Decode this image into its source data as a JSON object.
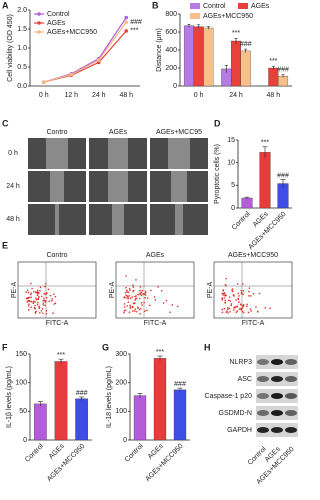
{
  "chart_data": [
    {
      "panel": "A",
      "type": "line",
      "y_label": "Cell viability (OD 450)",
      "categories": [
        "0 h",
        "12 h",
        "24 h",
        "48 h"
      ],
      "series": [
        {
          "name": "Control",
          "color": "#b05be0",
          "values": [
            0.1,
            0.32,
            0.72,
            1.8
          ]
        },
        {
          "name": "AGEs",
          "color": "#e8413c",
          "values": [
            0.1,
            0.28,
            0.62,
            1.45
          ],
          "value_annotations": [
            null,
            null,
            null,
            "***"
          ]
        },
        {
          "name": "AGEs+MCC950",
          "color": "#f5b97f",
          "values": [
            0.1,
            0.3,
            0.68,
            1.68
          ],
          "value_annotations": [
            null,
            null,
            null,
            "###"
          ]
        }
      ],
      "ylim": [
        0,
        2
      ],
      "yticks": [
        {
          "value": 0,
          "label": "0.0"
        },
        0.5,
        {
          "value": 1,
          "label": "1.0"
        },
        1.5,
        {
          "value": 2,
          "label": "2.0"
        }
      ],
      "legend": "upper left"
    },
    {
      "panel": "B",
      "type": "grouped-bar",
      "y_label": "Distance (μm)",
      "categories": [
        "0 h",
        "24 h",
        "48 h"
      ],
      "series": [
        {
          "name": "Control",
          "color": "#b57ae6",
          "values": [
            670,
            190,
            null
          ],
          "errors": [
            15,
            40,
            null
          ]
        },
        {
          "name": "AGEs",
          "color": "#e8413c",
          "values": [
            660,
            500,
            200
          ],
          "errors": [
            20,
            30,
            20
          ],
          "value_annotations": [
            null,
            "***",
            "***"
          ]
        },
        {
          "name": "AGEs+MCC950",
          "color": "#f7c08a",
          "values": [
            645,
            390,
            110
          ],
          "errors": [
            15,
            20,
            15
          ],
          "value_annotations": [
            null,
            "###",
            "###"
          ]
        }
      ],
      "ylim": [
        0,
        800
      ],
      "yticks": [
        0,
        200,
        400,
        600,
        800
      ],
      "legend": "upper right"
    },
    {
      "panel": "D",
      "type": "bar",
      "y_label": "Pyroptotic cells (%)",
      "categories": [
        "Control",
        "AGEs",
        "AGEs+MCC950"
      ],
      "values": [
        2.2,
        12.3,
        5.4
      ],
      "errors": [
        0.2,
        1.2,
        0.9
      ],
      "colors": [
        "#b45cd9",
        "#e83c3c",
        "#3d4de6"
      ],
      "value_annotations": [
        null,
        "***",
        "###"
      ],
      "ylim": [
        0,
        15
      ],
      "yticks": [
        0,
        5,
        10,
        15
      ]
    },
    {
      "panel": "F",
      "type": "bar",
      "y_label": "IL-1β levels (pg/mL)",
      "categories": [
        "Control",
        "AGEs",
        "AGEs+MCC950"
      ],
      "values": [
        63,
        137,
        72
      ],
      "errors": [
        4,
        4,
        3
      ],
      "colors": [
        "#b45cd9",
        "#e83c3c",
        "#3d4de6"
      ],
      "value_annotations": [
        null,
        "***",
        "###"
      ],
      "ylim": [
        0,
        150
      ],
      "yticks": [
        0,
        50,
        100,
        150
      ]
    },
    {
      "panel": "G",
      "type": "bar",
      "y_label": "IL-18 levels (pg/mL)",
      "categories": [
        "Control",
        "AGEs",
        "AGEs+MCC950"
      ],
      "values": [
        155,
        285,
        175
      ],
      "errors": [
        8,
        8,
        6
      ],
      "colors": [
        "#b45cd9",
        "#e83c3c",
        "#3d4de6"
      ],
      "value_annotations": [
        null,
        "***",
        "###"
      ],
      "ylim": [
        0,
        300
      ],
      "yticks": [
        0,
        100,
        200,
        300
      ]
    }
  ],
  "panel_c": {
    "panel": "C",
    "columns": [
      "Contro",
      "AGEs",
      "AGEs+MCC95"
    ],
    "rows": [
      "0 h",
      "24 h",
      "48 h"
    ]
  },
  "panel_e": {
    "panel": "E",
    "plots": [
      "Contro",
      "AGEs",
      "AGEs+MCC950"
    ],
    "x_label": "FITC-A",
    "y_label": "PE-A"
  },
  "panel_h": {
    "panel": "H",
    "proteins": [
      "NLRP3",
      "ASC",
      "Caspase-1 p20",
      "GSDMD-N",
      "GAPDH"
    ],
    "lanes": [
      "Control",
      "AGEs",
      "AGEs+MCC950"
    ]
  }
}
